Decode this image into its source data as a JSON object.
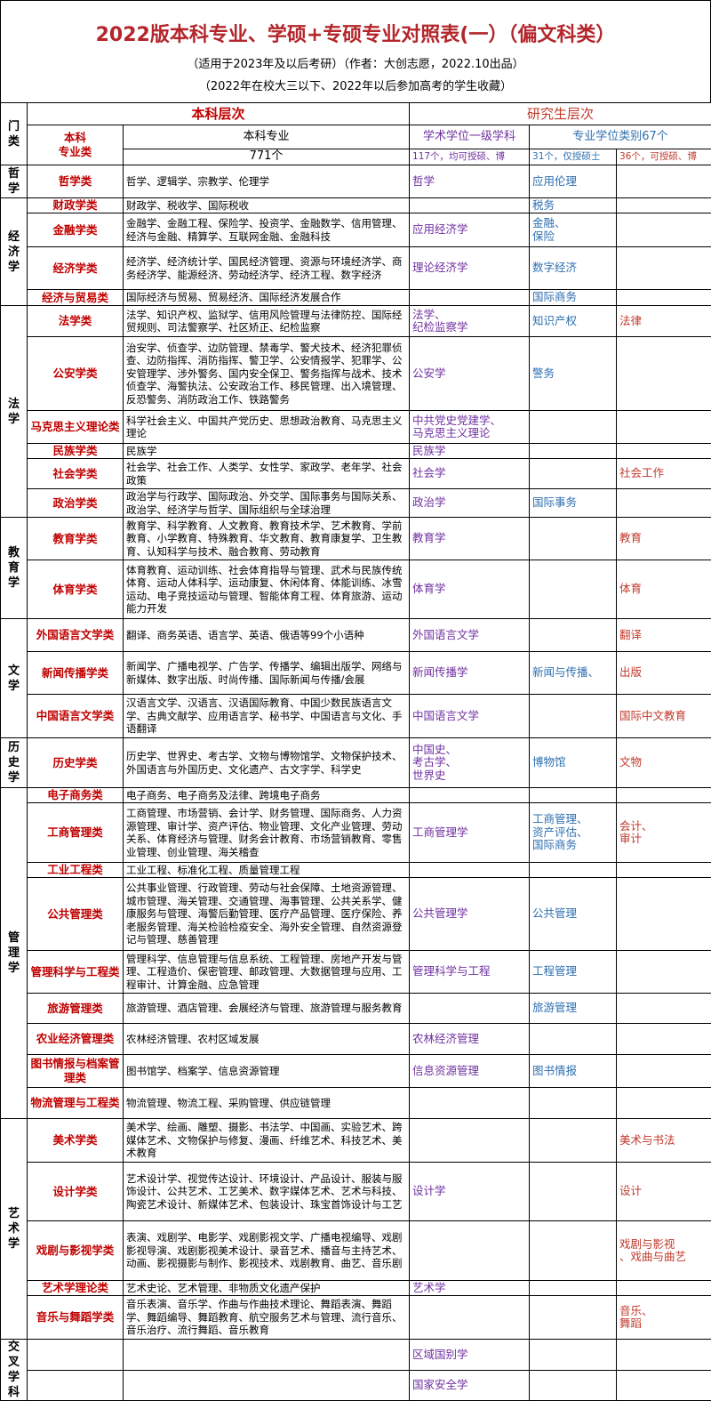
{
  "header": {
    "title": "2022版本科专业、学硕+专硕专业对照表(一）（偏文科类）",
    "subtitle": "（适用于2023年及以后考研）（作者：大创志愿，2022.10出品）",
    "note": "（2022年在校大三以下、2022年以后参加高考的学生收藏）"
  },
  "table": {
    "head": {
      "category": "门类",
      "undergrad_level": "本科层次",
      "grad_level": "研究生层次",
      "class": "本科\n专业类",
      "majors": "本科专业",
      "academic": "学术学位一级学科",
      "professional": "专业学位类别67个",
      "majors_count": "771个",
      "academic_count": "117个，均可授硕、博",
      "master_count": "31个，仅授硕士",
      "doctor_count": "36个，可授硕、博"
    },
    "groups": [
      {
        "name": "哲学",
        "rows": [
          {
            "class": "哲学类",
            "majors": "哲学、逻辑学、宗教学、伦理学",
            "academic": "哲学",
            "master": "应用伦理"
          }
        ]
      },
      {
        "name": "经济学",
        "rows": [
          {
            "class": "财政学类",
            "majors": "财政学、税收学、国际税收",
            "master": "税务"
          },
          {
            "class": "金融学类",
            "majors": "金融学、金融工程、保险学、投资学、金融数学、信用管理、经济与金融、精算学、互联网金融、金融科技",
            "academic": "应用经济学",
            "master": "金融、\n保险"
          },
          {
            "class": "经济学类",
            "majors": "经济学、经济统计学、国民经济管理、资源与环境经济学、商务经济学、能源经济、劳动经济学、经济工程、数字经济",
            "academic": "理论经济学",
            "master": "数字经济"
          },
          {
            "class": "经济与贸易类",
            "majors": "国际经济与贸易、贸易经济、国际经济发展合作",
            "master": "国际商务"
          }
        ]
      },
      {
        "name": "法学",
        "rows": [
          {
            "class": "法学类",
            "majors": "法学、知识产权、监狱学、信用风险管理与法律防控、国际经贸规则、司法警察学、社区矫正、纪检监察",
            "academic": "法学、\n纪检监察学",
            "master": "知识产权",
            "doctor": "法律"
          },
          {
            "class": "公安学类",
            "majors": "治安学、侦查学、边防管理、禁毒学、警犬技术、经济犯罪侦查、边防指挥、消防指挥、警卫学、公安情报学、犯罪学、公安管理学、涉外警务、国内安全保卫、警务指挥与战术、技术侦查学、海警执法、公安政治工作、移民管理、出入境管理、反恐警务、消防政治工作、铁路警务",
            "academic": "公安学",
            "master": "警务"
          },
          {
            "class": "马克思主义理论类",
            "majors": "科学社会主义、中国共产党历史、思想政治教育、马克思主义理论",
            "academic": "中共党史党建学、\n马克思主义理论"
          },
          {
            "class": "民族学类",
            "majors": "民族学",
            "academic": "民族学"
          },
          {
            "class": "社会学类",
            "majors": "社会学、社会工作、人类学、女性学、家政学、老年学、社会政策",
            "academic": "社会学",
            "doctor": "社会工作"
          },
          {
            "class": "政治学类",
            "majors": "政治学与行政学、国际政治、外交学、国际事务与国际关系、政治学、经济学与哲学、国际组织与全球治理",
            "academic": "政治学",
            "master": "国际事务"
          }
        ]
      },
      {
        "name": "教育学",
        "rows": [
          {
            "class": "教育学类",
            "majors": "教育学、科学教育、人文教育、教育技术学、艺术教育、学前教育、小学教育、特殊教育、华文教育、教育康复学、卫生教育、认知科学与技术、融合教育、劳动教育",
            "academic": "教育学",
            "doctor": "教育"
          },
          {
            "class": "体育学类",
            "majors": "体育教育、运动训练、社会体育指导与管理、武术与民族传统体育、运动人体科学、运动康复、休闲体育、体能训练、冰雪运动、电子竞技运动与管理、智能体育工程、体育旅游、运动能力开发",
            "academic": "体育学",
            "doctor": "体育"
          }
        ]
      },
      {
        "name": "文学",
        "rows": [
          {
            "class": "外国语言文学类",
            "majors": "翻译、商务英语、语言学、英语、俄语等99个小语种",
            "academic": "外国语言文学",
            "doctor": "翻译"
          },
          {
            "class": "新闻传播学类",
            "majors": "新闻学、广播电视学、广告学、传播学、编辑出版学、网络与新媒体、数字出版、时尚传播、国际新闻与传播/会展",
            "academic": "新闻传播学",
            "master": "新闻与传播、",
            "doctor": "出版"
          },
          {
            "class": "中国语言文学类",
            "majors": "汉语言文学、汉语言、汉语国际教育、中国少数民族语言文学、古典文献学、应用语言学、秘书学、中国语言与文化、手语翻译",
            "academic": "中国语言文学",
            "doctor": "国际中文教育"
          }
        ]
      },
      {
        "name": "历史学",
        "rows": [
          {
            "class": "历史学类",
            "majors": "历史学、世界史、考古学、文物与博物馆学、文物保护技术、外国语言与外国历史、文化遗产、古文字学、科学史",
            "academic": "中国史、\n考古学、\n世界史",
            "master": "博物馆",
            "doctor": "文物"
          }
        ]
      },
      {
        "name": "管理学",
        "rows": [
          {
            "class": "电子商务类",
            "majors": "电子商务、电子商务及法律、跨境电子商务"
          },
          {
            "class": "工商管理类",
            "majors": "工商管理、市场营销、会计学、财务管理、国际商务、人力资源管理、审计学、资产评估、物业管理、文化产业管理、劳动关系、体育经济与管理、财务会计教育、市场营销教育、零售业管理、创业管理、海关稽查",
            "academic": "工商管理学",
            "master": "工商管理、\n资产评估、\n国际商务",
            "doctor": "会计、\n审计"
          },
          {
            "class": "工业工程类",
            "majors": "工业工程、标准化工程、质量管理工程"
          },
          {
            "class": "公共管理类",
            "majors": "公共事业管理、行政管理、劳动与社会保障、土地资源管理、城市管理、海关管理、交通管理、海事管理、公共关系学、健康服务与管理、海警后勤管理、医疗产品管理、医疗保险、养老服务管理、海关检验检疫安全、海外安全管理、自然资源登记与管理、慈善管理",
            "academic": "公共管理学",
            "master": "公共管理"
          },
          {
            "class": "管理科学与工程类",
            "majors": "管理科学、信息管理与信息系统、工程管理、房地产开发与管理、工程造价、保密管理、邮政管理、大数据管理与应用、工程审计、计算金融、应急管理",
            "academic": "管理科学与工程",
            "master": "工程管理"
          },
          {
            "class": "旅游管理类",
            "majors": "旅游管理、酒店管理、会展经济与管理、旅游管理与服务教育",
            "master": "旅游管理"
          },
          {
            "class": "农业经济管理类",
            "majors": "农林经济管理、农村区域发展",
            "academic": "农林经济管理"
          },
          {
            "class": "图书情报与档案管理类",
            "majors": "图书馆学、档案学、信息资源管理",
            "academic": "信息资源管理",
            "master": "图书情报"
          },
          {
            "class": "物流管理与工程类",
            "majors": "物流管理、物流工程、采购管理、供应链管理"
          }
        ]
      },
      {
        "name": "艺术学",
        "rows": [
          {
            "class": "美术学类",
            "majors": "美术学、绘画、雕塑、摄影、书法学、中国画、实验艺术、跨媒体艺术、文物保护与修复、漫画、纤维艺术、科技艺术、美术教育",
            "doctor": "美术与书法"
          },
          {
            "class": "设计学类",
            "majors": "艺术设计学、视觉传达设计、环境设计、产品设计、服装与服饰设计、公共艺术、工艺美术、数字媒体艺术、艺术与科技、陶瓷艺术设计、新媒体艺术、包装设计、珠宝首饰设计与工艺",
            "academic": "设计学",
            "doctor": "设计"
          },
          {
            "class": "戏剧与影视学类",
            "majors": "表演、戏剧学、电影学、戏剧影视文学、广播电视编导、戏剧影视导演、戏剧影视美术设计、录音艺术、播音与主持艺术、动画、影视摄影与制作、影视技术、戏剧教育、曲艺、音乐剧",
            "doctor": "戏剧与影视\n、戏曲与曲艺"
          },
          {
            "class": "艺术学理论类",
            "majors": "艺术史论、艺术管理、非物质文化遗产保护",
            "academic": "艺术学"
          },
          {
            "class": "音乐与舞蹈学类",
            "majors": "音乐表演、音乐学、作曲与作曲技术理论、舞蹈表演、舞蹈学、舞蹈编导、舞蹈教育、航空服务艺术与管理、流行音乐、音乐治疗、流行舞蹈、音乐教育",
            "doctor": "音乐、\n舞蹈"
          }
        ]
      },
      {
        "name": "交叉学科",
        "rows": [
          {
            "academic": "区域国别学"
          },
          {
            "academic": "国家安全学"
          }
        ]
      }
    ]
  }
}
